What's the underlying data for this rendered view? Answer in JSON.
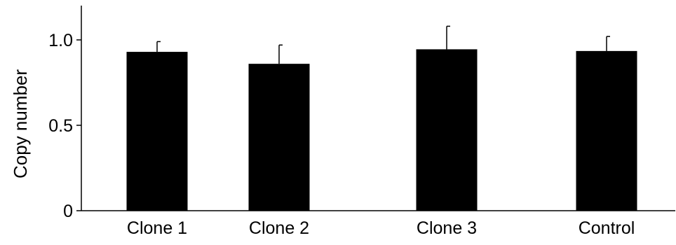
{
  "chart_data": {
    "type": "bar",
    "title": "",
    "xlabel": "",
    "ylabel": "Copy number",
    "categories": [
      "Clone 1",
      "Clone 2",
      "Clone 3",
      "Control"
    ],
    "values": [
      0.93,
      0.86,
      0.945,
      0.935
    ],
    "error_upper": [
      0.06,
      0.11,
      0.135,
      0.085
    ],
    "ylim": [
      0,
      1.18
    ],
    "yticks": [
      0,
      0.5,
      1.0
    ],
    "ytick_labels": [
      "0",
      "0.5",
      "1.0"
    ],
    "grid": false,
    "legend": "none",
    "bar_color": "#000000",
    "axis_color": "#000000"
  }
}
